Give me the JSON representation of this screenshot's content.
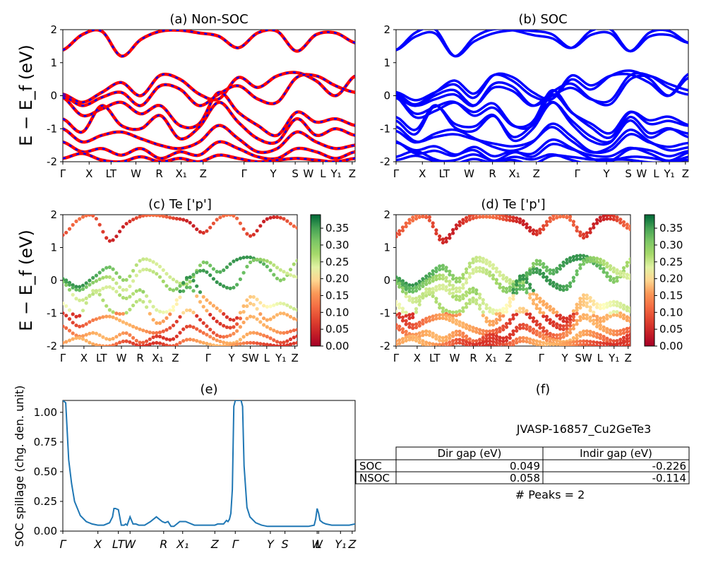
{
  "figure": {
    "panel_a_title": "(a) Non-SOC",
    "panel_b_title": "(b) SOC",
    "panel_c_title": "(c)  Te ['p']",
    "panel_d_title": "(d) Te ['p']",
    "panel_e_title": "(e)",
    "panel_f_title": "(f)",
    "energy_ylabel": "E − E_f (eV)",
    "spillage_ylabel": "SOC spillage (chg. den. unit)"
  },
  "chart_data": [
    {
      "type": "line",
      "title": "(a) Non-SOC",
      "ylabel": "E − E_f (eV)",
      "ylim": [
        -2,
        2
      ],
      "yticks": [
        2,
        1,
        0,
        -1,
        -2
      ],
      "kpath_labels": [
        "Γ",
        "X",
        "LT",
        "W",
        "R",
        "X₁",
        "Z",
        "Γ",
        "Y",
        "S",
        "W",
        "L",
        "Y₁",
        "Z"
      ],
      "kpath_positions": [
        0.0,
        0.09,
        0.165,
        0.25,
        0.33,
        0.405,
        0.48,
        0.62,
        0.72,
        0.795,
        0.84,
        0.89,
        0.935,
        0.99
      ],
      "series_colors": [
        "#ff0000",
        "#0000ff"
      ],
      "bands": [
        [
          1.38,
          1.85,
          1.95,
          1.2,
          1.7,
          1.95,
          1.98,
          1.9,
          1.8,
          1.45,
          1.9,
          1.95,
          1.35,
          1.85,
          1.9,
          1.6
        ],
        [
          0.05,
          -0.2,
          0.1,
          0.4,
          0.0,
          0.62,
          0.5,
          0.05,
          -0.1,
          0.55,
          0.25,
          0.6,
          0.7,
          0.45,
          0.0,
          0.6
        ],
        [
          0.0,
          -0.3,
          -0.05,
          0.1,
          -0.3,
          0.3,
          0.2,
          -0.3,
          0.05,
          0.3,
          -0.1,
          -0.2,
          0.55,
          0.6,
          0.3,
          0.1
        ],
        [
          -0.05,
          -0.6,
          -0.4,
          -0.2,
          -0.55,
          -0.3,
          -0.9,
          -0.85,
          0.1,
          -0.5,
          -0.9,
          -1.2,
          -0.5,
          -0.8,
          -0.7,
          -0.9
        ],
        [
          -0.7,
          -1.1,
          -0.3,
          -0.9,
          -1.0,
          -0.6,
          -1.3,
          -0.95,
          -0.2,
          -0.8,
          -1.3,
          -1.4,
          -0.7,
          -1.2,
          -1.0,
          -1.2
        ],
        [
          -1.0,
          -1.4,
          -1.2,
          -1.1,
          -1.3,
          -1.5,
          -1.6,
          -1.4,
          -0.9,
          -1.3,
          -1.7,
          -1.6,
          -1.1,
          -1.4,
          -1.6,
          -1.5
        ],
        [
          -1.4,
          -1.7,
          -1.6,
          -1.8,
          -1.6,
          -1.9,
          -1.7,
          -1.8,
          -1.4,
          -1.6,
          -1.85,
          -1.9,
          -1.6,
          -1.7,
          -1.9,
          -1.7
        ],
        [
          -1.9,
          -1.75,
          -1.95,
          -2.0,
          -1.85,
          -2.0,
          -1.9,
          -2.0,
          -1.8,
          -1.9,
          -2.0,
          -1.95,
          -1.9,
          -1.95,
          -2.0,
          -1.9
        ]
      ]
    },
    {
      "type": "line",
      "title": "(b) SOC",
      "ylim": [
        -2,
        2
      ],
      "yticks": [
        2,
        1,
        0,
        -1,
        -2
      ],
      "kpath_labels": [
        "Γ",
        "X",
        "LT",
        "W",
        "R",
        "X₁",
        "Z",
        "Γ",
        "Y",
        "S",
        "W",
        "L",
        "Y₁",
        "Z"
      ],
      "kpath_positions": [
        0.0,
        0.09,
        0.165,
        0.25,
        0.33,
        0.405,
        0.48,
        0.62,
        0.72,
        0.795,
        0.84,
        0.89,
        0.935,
        0.99
      ],
      "series_colors": [
        "#0000ff"
      ],
      "band_splitting": 0.07
    },
    {
      "type": "scatter",
      "title": "(c)  Te ['p']",
      "ylabel": "E − E_f (eV)",
      "ylim": [
        -2,
        2
      ],
      "yticks": [
        2,
        1,
        0,
        -1,
        -2
      ],
      "kpath_labels": [
        "Γ",
        "X",
        "LT",
        "W",
        "R",
        "X₁",
        "Z",
        "Γ",
        "Y",
        "SW",
        "L",
        "Y₁",
        "Z"
      ],
      "kpath_positions": [
        0.0,
        0.09,
        0.165,
        0.25,
        0.33,
        0.405,
        0.48,
        0.62,
        0.72,
        0.8,
        0.87,
        0.93,
        0.99
      ],
      "colorbar": {
        "colormap": "RdYlGn",
        "min": 0.0,
        "max": 0.39,
        "ticks": [
          "0.00",
          "0.05",
          "0.10",
          "0.15",
          "0.20",
          "0.25",
          "0.30",
          "0.35"
        ]
      }
    },
    {
      "type": "scatter",
      "title": "(d) Te ['p']",
      "ylim": [
        -2,
        2
      ],
      "yticks": [
        2,
        1,
        0,
        -1,
        -2
      ],
      "kpath_labels": [
        "Γ",
        "X",
        "LT",
        "W",
        "R",
        "X₁",
        "Z",
        "Γ",
        "Y",
        "SW",
        "L",
        "Y₁",
        "Z"
      ],
      "kpath_positions": [
        0.0,
        0.09,
        0.165,
        0.25,
        0.33,
        0.405,
        0.48,
        0.62,
        0.72,
        0.8,
        0.87,
        0.93,
        0.99
      ],
      "colorbar": {
        "colormap": "RdYlGn",
        "min": 0.0,
        "max": 0.39,
        "ticks": [
          "0.00",
          "0.05",
          "0.10",
          "0.15",
          "0.20",
          "0.25",
          "0.30",
          "0.35"
        ]
      }
    },
    {
      "type": "line",
      "title": "(e)",
      "ylabel": "SOC spillage (chg. den. unit)",
      "ylim": [
        0,
        1.1
      ],
      "yticks": [
        "0.00",
        "0.25",
        "0.50",
        "0.75",
        "1.00"
      ],
      "xticks": [
        "Γ",
        "X",
        "LT",
        "W",
        "R",
        "X₁",
        "Z",
        "Γ",
        "Y",
        "S",
        "W",
        "L",
        "Y₁",
        "Z"
      ],
      "xtick_positions": [
        0.0,
        0.12,
        0.19,
        0.23,
        0.345,
        0.41,
        0.52,
        0.59,
        0.71,
        0.76,
        0.87,
        0.875,
        0.95,
        0.99
      ],
      "color": "#1f77b4",
      "x": [
        0.0,
        0.01,
        0.02,
        0.03,
        0.04,
        0.06,
        0.08,
        0.1,
        0.12,
        0.14,
        0.16,
        0.17,
        0.175,
        0.18,
        0.19,
        0.2,
        0.21,
        0.215,
        0.22,
        0.23,
        0.24,
        0.25,
        0.26,
        0.28,
        0.3,
        0.31,
        0.32,
        0.33,
        0.34,
        0.35,
        0.36,
        0.37,
        0.38,
        0.4,
        0.42,
        0.45,
        0.48,
        0.5,
        0.52,
        0.53,
        0.54,
        0.55,
        0.56,
        0.565,
        0.57,
        0.575,
        0.58,
        0.585,
        0.59,
        0.6,
        0.61,
        0.615,
        0.62,
        0.63,
        0.64,
        0.66,
        0.68,
        0.7,
        0.72,
        0.76,
        0.8,
        0.84,
        0.86,
        0.865,
        0.87,
        0.875,
        0.88,
        0.89,
        0.9,
        0.92,
        0.94,
        0.96,
        0.98,
        1.0
      ],
      "y": [
        1.1,
        1.08,
        0.6,
        0.4,
        0.25,
        0.13,
        0.08,
        0.06,
        0.05,
        0.05,
        0.07,
        0.12,
        0.19,
        0.19,
        0.18,
        0.05,
        0.05,
        0.06,
        0.05,
        0.12,
        0.06,
        0.06,
        0.05,
        0.05,
        0.08,
        0.1,
        0.12,
        0.1,
        0.08,
        0.07,
        0.08,
        0.04,
        0.04,
        0.08,
        0.08,
        0.05,
        0.05,
        0.05,
        0.05,
        0.06,
        0.06,
        0.06,
        0.09,
        0.08,
        0.1,
        0.15,
        0.35,
        1.05,
        1.1,
        1.1,
        1.1,
        1.05,
        0.55,
        0.2,
        0.12,
        0.07,
        0.05,
        0.04,
        0.04,
        0.04,
        0.04,
        0.04,
        0.05,
        0.1,
        0.19,
        0.15,
        0.09,
        0.07,
        0.06,
        0.05,
        0.05,
        0.05,
        0.05,
        0.06
      ]
    },
    {
      "type": "table",
      "title": "(f)",
      "subtitle": "JVASP-16857_Cu2GeTe3",
      "columns": [
        "",
        "Dir gap (eV)",
        "Indir gap (eV)"
      ],
      "rows": [
        [
          "SOC",
          "0.049",
          "-0.226"
        ],
        [
          "NSOC",
          "0.058",
          "-0.114"
        ]
      ],
      "note": "# Peaks = 2"
    }
  ]
}
